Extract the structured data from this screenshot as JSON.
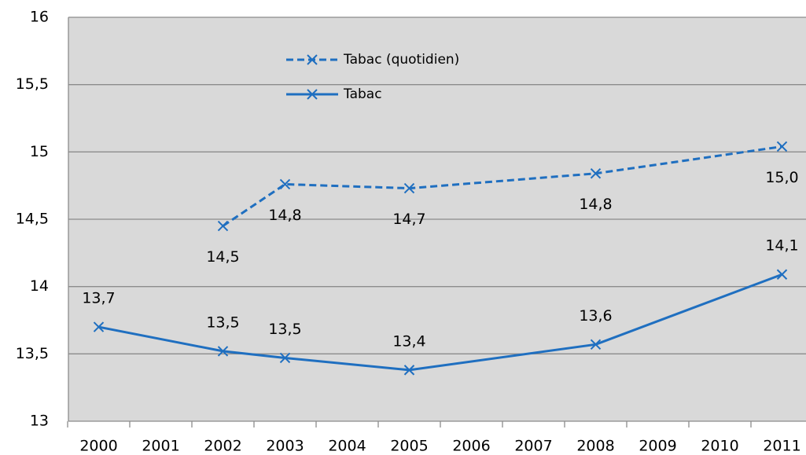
{
  "chart_data": {
    "type": "line",
    "xlim": [
      1999.5,
      2011.5
    ],
    "xticks": [
      2000,
      2001,
      2002,
      2003,
      2004,
      2005,
      2006,
      2007,
      2008,
      2009,
      2010,
      2011
    ],
    "ylim": [
      13,
      16
    ],
    "yticks": [
      13,
      {
        "value": 13.5,
        "label": "13,5"
      },
      14,
      {
        "value": 14.5,
        "label": "14,5"
      },
      15,
      {
        "value": 15.5,
        "label": "15,5"
      },
      16
    ],
    "grid": true,
    "legend": "top",
    "series": [
      {
        "name": "Tabac (quotidien)",
        "color": "#1f6fc0",
        "dashed": true,
        "x": [
          2002,
          2003,
          2005,
          2008,
          2011
        ],
        "values": [
          14.45,
          14.76,
          14.73,
          14.84,
          15.04
        ],
        "value_labels": [
          "14,5",
          "14,8",
          "14,7",
          "14,8",
          "15,0"
        ]
      },
      {
        "name": "Tabac",
        "color": "#1f6fc0",
        "dashed": false,
        "x": [
          2000,
          2002,
          2003,
          2005,
          2008,
          2011
        ],
        "values": [
          13.7,
          13.52,
          13.47,
          13.38,
          13.57,
          14.09
        ],
        "value_labels": [
          "13,7",
          "13,5",
          "13,5",
          "13,4",
          "13,6",
          "14,1"
        ]
      }
    ]
  }
}
